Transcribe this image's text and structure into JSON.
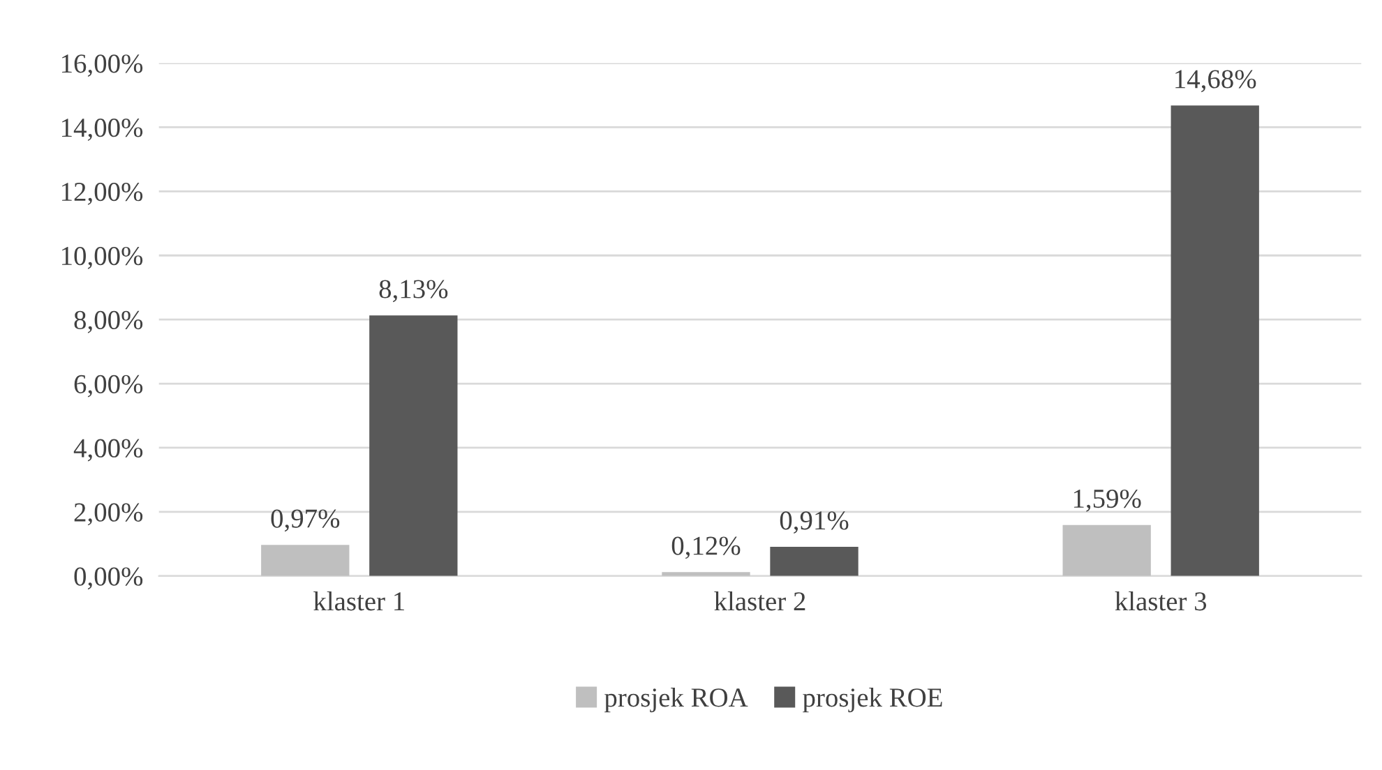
{
  "chart_data": {
    "type": "bar",
    "categories": [
      "klaster 1",
      "klaster 2",
      "klaster 3"
    ],
    "series": [
      {
        "name": "prosjek ROA",
        "color": "#bfbfbf",
        "values": [
          0.97,
          0.12,
          1.59
        ],
        "value_labels": [
          "0,97%",
          "0,12%",
          "1,59%"
        ]
      },
      {
        "name": "prosjek ROE",
        "color": "#595959",
        "values": [
          8.13,
          0.91,
          14.68
        ],
        "value_labels": [
          "8,13%",
          "0,91%",
          "14,68%"
        ]
      }
    ],
    "ylim": [
      0,
      16
    ],
    "yticks": [
      {
        "value": 0,
        "label": "0,00%"
      },
      {
        "value": 2,
        "label": "2,00%"
      },
      {
        "value": 4,
        "label": "4,00%"
      },
      {
        "value": 6,
        "label": "6,00%"
      },
      {
        "value": 8,
        "label": "8,00%"
      },
      {
        "value": 10,
        "label": "10,00%"
      },
      {
        "value": 12,
        "label": "12,00%"
      },
      {
        "value": 14,
        "label": "14,00%"
      },
      {
        "value": 16,
        "label": "16,00%"
      }
    ],
    "grid": "y",
    "legend": "bottom"
  }
}
